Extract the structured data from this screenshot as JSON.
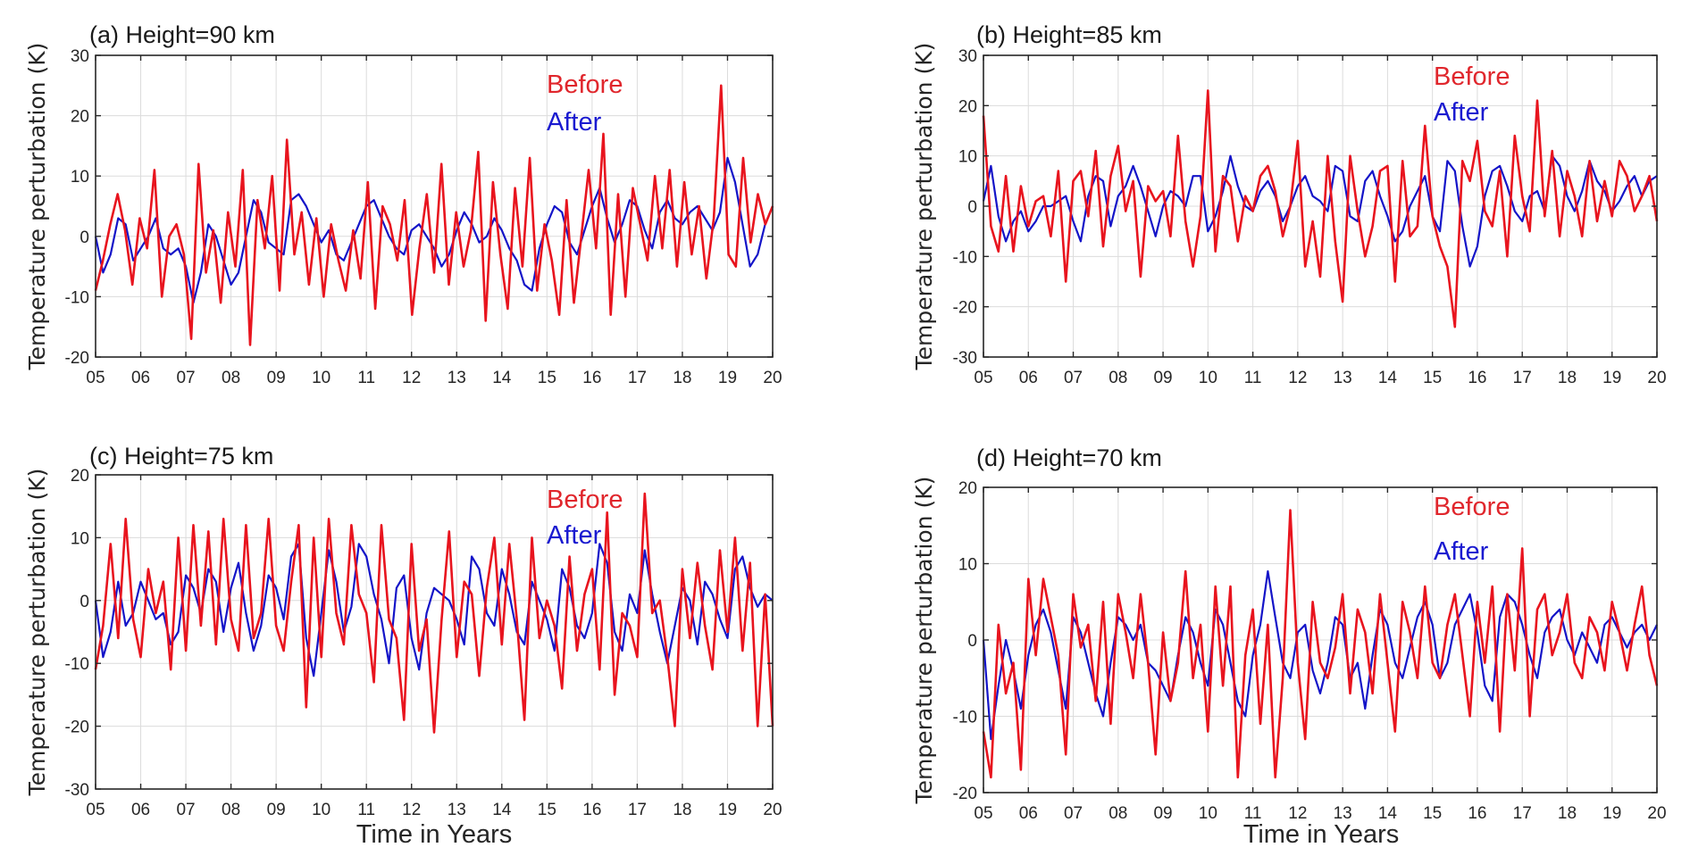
{
  "chart_data": [
    {
      "id": "a",
      "type": "line",
      "title": "(a) Height=90 km",
      "xlabel": "",
      "ylabel": "Temperature perturbation (K)",
      "xlim": [
        2005,
        2020
      ],
      "ylim": [
        -20,
        30
      ],
      "yticks": [
        -20,
        -10,
        0,
        10,
        20,
        30
      ],
      "xticks": [
        2005,
        2006,
        2007,
        2008,
        2009,
        2010,
        2011,
        2012,
        2013,
        2014,
        2015,
        2016,
        2017,
        2018,
        2019,
        2020
      ],
      "xticklabels": [
        "05",
        "06",
        "07",
        "08",
        "09",
        "10",
        "11",
        "12",
        "13",
        "14",
        "15",
        "16",
        "17",
        "18",
        "19",
        "20"
      ],
      "grid": true,
      "legend_position": "top-right",
      "series": [
        {
          "name": "Before",
          "color": "#e8141e",
          "values": [
            -9,
            -4,
            2,
            7,
            1,
            -8,
            3,
            -2,
            11,
            -10,
            0,
            2,
            -3,
            -17,
            12,
            -6,
            1,
            -11,
            4,
            -5,
            11,
            -18,
            6,
            -2,
            10,
            -9,
            16,
            -3,
            4,
            -8,
            3,
            -10,
            2,
            -4,
            -9,
            1,
            -7,
            9,
            -12,
            5,
            2,
            -4,
            6,
            -13,
            -2,
            7,
            -6,
            12,
            -8,
            4,
            -5,
            1,
            14,
            -14,
            9,
            -3,
            -12,
            8,
            -5,
            13,
            -9,
            2,
            -4,
            -13,
            6,
            -11,
            0,
            11,
            -2,
            17,
            -13,
            7,
            -10,
            8,
            2,
            -4,
            10,
            -2,
            11,
            -5,
            9,
            -3,
            5,
            -7,
            3,
            25,
            -3,
            -5,
            13,
            -1,
            7,
            2,
            5
          ]
        },
        {
          "name": "After",
          "color": "#1414c8",
          "values": [
            0,
            -6,
            -3,
            3,
            2,
            -4,
            -2,
            0,
            3,
            -2,
            -3,
            -2,
            -5,
            -11,
            -6,
            2,
            0,
            -4,
            -8,
            -6,
            0,
            6,
            4,
            -1,
            -2,
            -3,
            6,
            7,
            5,
            2,
            -1,
            1,
            -3,
            -4,
            -1,
            2,
            5,
            6,
            3,
            0,
            -2,
            -3,
            1,
            2,
            0,
            -2,
            -5,
            -3,
            1,
            4,
            2,
            -1,
            0,
            3,
            1,
            -2,
            -4,
            -8,
            -9,
            -2,
            2,
            5,
            4,
            -1,
            -3,
            1,
            5,
            8,
            3,
            -1,
            2,
            6,
            5,
            1,
            -2,
            4,
            6,
            3,
            2,
            4,
            5,
            3,
            1,
            4,
            13,
            9,
            2,
            -5,
            -3,
            2,
            5
          ]
        }
      ]
    },
    {
      "id": "b",
      "type": "line",
      "title": "(b) Height=85 km",
      "xlabel": "",
      "ylabel": "Temperature perturbation (K)",
      "xlim": [
        2005,
        2020
      ],
      "ylim": [
        -30,
        30
      ],
      "yticks": [
        -30,
        -20,
        -10,
        0,
        10,
        20,
        30
      ],
      "xticks": [
        2005,
        2006,
        2007,
        2008,
        2009,
        2010,
        2011,
        2012,
        2013,
        2014,
        2015,
        2016,
        2017,
        2018,
        2019,
        2020
      ],
      "xticklabels": [
        "05",
        "06",
        "07",
        "08",
        "09",
        "10",
        "11",
        "12",
        "13",
        "14",
        "15",
        "16",
        "17",
        "18",
        "19",
        "20"
      ],
      "grid": true,
      "legend_position": "top-right",
      "series": [
        {
          "name": "Before",
          "color": "#e8141e",
          "values": [
            18,
            -4,
            -9,
            6,
            -9,
            4,
            -4,
            1,
            2,
            -6,
            7,
            -15,
            5,
            7,
            -2,
            11,
            -8,
            6,
            12,
            -1,
            5,
            -14,
            4,
            1,
            3,
            -6,
            14,
            -3,
            -12,
            -2,
            23,
            -9,
            6,
            4,
            -7,
            2,
            -1,
            6,
            8,
            3,
            -6,
            0,
            13,
            -12,
            -3,
            -14,
            10,
            -7,
            -19,
            10,
            -1,
            -10,
            -4,
            7,
            8,
            -15,
            9,
            -6,
            -4,
            16,
            -2,
            -8,
            -12,
            -24,
            9,
            5,
            13,
            -1,
            -4,
            7,
            -10,
            14,
            2,
            -5,
            21,
            -2,
            11,
            -6,
            7,
            2,
            -6,
            9,
            -3,
            5,
            -2,
            9,
            6,
            -1,
            2,
            6,
            -3
          ]
        },
        {
          "name": "After",
          "color": "#1414c8",
          "values": [
            1,
            8,
            -2,
            -7,
            -3,
            -1,
            -5,
            -3,
            0,
            0,
            1,
            2,
            -3,
            -7,
            2,
            6,
            5,
            -4,
            2,
            4,
            8,
            4,
            -1,
            -6,
            0,
            3,
            2,
            0,
            6,
            6,
            -5,
            -2,
            3,
            10,
            4,
            0,
            -1,
            3,
            5,
            2,
            -3,
            0,
            4,
            6,
            2,
            1,
            -1,
            8,
            7,
            -2,
            -3,
            5,
            7,
            2,
            -2,
            -7,
            -5,
            0,
            3,
            6,
            -2,
            -5,
            9,
            7,
            -4,
            -12,
            -8,
            2,
            7,
            8,
            4,
            -1,
            -3,
            2,
            3,
            -1,
            10,
            8,
            2,
            -1,
            3,
            9,
            5,
            3,
            -1,
            1,
            4,
            6,
            2,
            5,
            6
          ]
        }
      ]
    },
    {
      "id": "c",
      "type": "line",
      "title": "(c) Height=75 km",
      "xlabel": "Time in Years",
      "ylabel": "Temperature perturbation (K)",
      "xlim": [
        2005,
        2020
      ],
      "ylim": [
        -30,
        20
      ],
      "yticks": [
        -30,
        -20,
        -10,
        0,
        10,
        20
      ],
      "xticks": [
        2005,
        2006,
        2007,
        2008,
        2009,
        2010,
        2011,
        2012,
        2013,
        2014,
        2015,
        2016,
        2017,
        2018,
        2019,
        2020
      ],
      "xticklabels": [
        "05",
        "06",
        "07",
        "08",
        "09",
        "10",
        "11",
        "12",
        "13",
        "14",
        "15",
        "16",
        "17",
        "18",
        "19",
        "20"
      ],
      "grid": true,
      "legend_position": "top-right",
      "series": [
        {
          "name": "Before",
          "color": "#e8141e",
          "values": [
            -11,
            -4,
            9,
            -6,
            13,
            -3,
            -9,
            5,
            -2,
            3,
            -11,
            10,
            -8,
            12,
            -4,
            11,
            -7,
            13,
            -3,
            -8,
            12,
            -6,
            -2,
            13,
            -4,
            -8,
            3,
            12,
            -17,
            10,
            -9,
            13,
            -2,
            -7,
            12,
            1,
            -2,
            -13,
            12,
            -3,
            -6,
            -19,
            9,
            -8,
            -3,
            -21,
            -3,
            11,
            -9,
            3,
            1,
            -12,
            2,
            10,
            -7,
            9,
            -3,
            -19,
            10,
            -6,
            0,
            -4,
            -14,
            7,
            -8,
            1,
            5,
            -11,
            14,
            -15,
            -2,
            -4,
            -9,
            17,
            -2,
            0,
            -9,
            -20,
            5,
            -6,
            6,
            -4,
            -11,
            8,
            -5,
            10,
            -8,
            6,
            -20,
            1,
            -20
          ]
        },
        {
          "name": "After",
          "color": "#1414c8",
          "values": [
            0,
            -9,
            -5,
            3,
            -4,
            -2,
            3,
            0,
            -3,
            -2,
            -7,
            -5,
            4,
            2,
            -2,
            5,
            3,
            -5,
            2,
            6,
            -2,
            -8,
            -4,
            4,
            2,
            -3,
            7,
            9,
            -6,
            -12,
            -2,
            8,
            3,
            -5,
            -1,
            9,
            7,
            1,
            -3,
            -10,
            2,
            4,
            -6,
            -11,
            -2,
            2,
            1,
            0,
            -3,
            -7,
            7,
            5,
            -2,
            -4,
            5,
            1,
            -5,
            -7,
            3,
            0,
            -3,
            -8,
            5,
            2,
            -4,
            -6,
            -2,
            9,
            6,
            -5,
            -8,
            1,
            -2,
            8,
            1,
            -5,
            -10,
            -4,
            2,
            0,
            -7,
            3,
            1,
            -3,
            -6,
            5,
            7,
            2,
            -1,
            1,
            0
          ]
        }
      ]
    },
    {
      "id": "d",
      "type": "line",
      "title": "(d) Height=70 km",
      "xlabel": "Time in Years",
      "ylabel": "Temperature perturbation (K)",
      "xlim": [
        2005,
        2020
      ],
      "ylim": [
        -20,
        20
      ],
      "yticks": [
        -20,
        -10,
        0,
        10,
        20
      ],
      "xticks": [
        2005,
        2006,
        2007,
        2008,
        2009,
        2010,
        2011,
        2012,
        2013,
        2014,
        2015,
        2016,
        2017,
        2018,
        2019,
        2020
      ],
      "xticklabels": [
        "05",
        "06",
        "07",
        "08",
        "09",
        "10",
        "11",
        "12",
        "13",
        "14",
        "15",
        "16",
        "17",
        "18",
        "19",
        "20"
      ],
      "grid": true,
      "legend_position": "top-right",
      "series": [
        {
          "name": "Before",
          "color": "#e8141e",
          "values": [
            -12,
            -18,
            2,
            -7,
            -3,
            -17,
            8,
            -2,
            8,
            3,
            -2,
            -15,
            6,
            -1,
            2,
            -8,
            5,
            -11,
            6,
            1,
            -5,
            6,
            -3,
            -15,
            1,
            -8,
            -3,
            9,
            -5,
            2,
            -12,
            7,
            -6,
            7,
            -18,
            -2,
            4,
            -11,
            2,
            -18,
            -5,
            17,
            -3,
            -13,
            5,
            -3,
            -5,
            -1,
            6,
            -7,
            4,
            1,
            -7,
            6,
            -3,
            -12,
            5,
            1,
            -5,
            7,
            -3,
            -5,
            2,
            6,
            -2,
            -10,
            5,
            -3,
            7,
            -12,
            6,
            -4,
            12,
            -10,
            4,
            6,
            -2,
            1,
            6,
            -3,
            -5,
            3,
            1,
            -4,
            5,
            1,
            -4,
            2,
            7,
            -2,
            -6
          ]
        },
        {
          "name": "After",
          "color": "#1414c8",
          "values": [
            0,
            -13,
            -6,
            0,
            -4,
            -9,
            -2,
            2,
            4,
            1,
            -4,
            -9,
            3,
            1,
            -3,
            -7,
            -10,
            -3,
            3,
            2,
            0,
            2,
            -3,
            -4,
            -6,
            -8,
            -2,
            3,
            1,
            -3,
            -6,
            4,
            2,
            -3,
            -8,
            -10,
            -2,
            2,
            9,
            3,
            -3,
            -5,
            1,
            2,
            -4,
            -7,
            -3,
            3,
            2,
            -5,
            -3,
            -9,
            -2,
            4,
            2,
            -3,
            -5,
            -1,
            3,
            5,
            2,
            -5,
            -3,
            2,
            4,
            6,
            1,
            -6,
            -8,
            3,
            6,
            5,
            2,
            -2,
            -5,
            1,
            3,
            4,
            0,
            -2,
            1,
            -1,
            -3,
            2,
            3,
            1,
            -1,
            1,
            2,
            0,
            2
          ]
        }
      ]
    }
  ]
}
